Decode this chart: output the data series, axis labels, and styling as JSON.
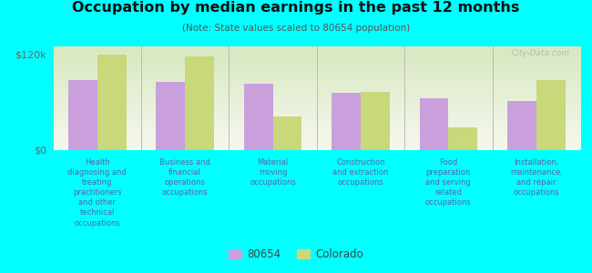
{
  "title": "Occupation by median earnings in the past 12 months",
  "subtitle": "(Note: State values scaled to 80654 population)",
  "background_color": "#00FFFF",
  "plot_bg_top": "#d8e8c0",
  "plot_bg_bottom": "#f5f8ee",
  "categories": [
    "Health\ndiagnosing and\ntreating\npractitioners\nand other\ntechnical\noccupations",
    "Business and\nfinancial\noperations\noccupations",
    "Material\nmoving\noccupations",
    "Construction\nand extraction\noccupations",
    "Food\npreparation\nand serving\nrelated\noccupations",
    "Installation,\nmaintenance,\nand repair\noccupations"
  ],
  "values_80654": [
    88,
    86,
    83,
    72,
    65,
    62
  ],
  "values_colorado": [
    120,
    118,
    42,
    73,
    28,
    88
  ],
  "color_80654": "#c9a0dc",
  "color_colorado": "#c8d87a",
  "ylim": [
    0,
    130
  ],
  "ytick_vals": [
    0,
    120
  ],
  "ytick_labels": [
    "$0",
    "$120k"
  ],
  "legend_labels": [
    "80654",
    "Colorado"
  ],
  "watermark": "City-Data.com",
  "label_color": "#5566aa",
  "tick_color": "#666666"
}
